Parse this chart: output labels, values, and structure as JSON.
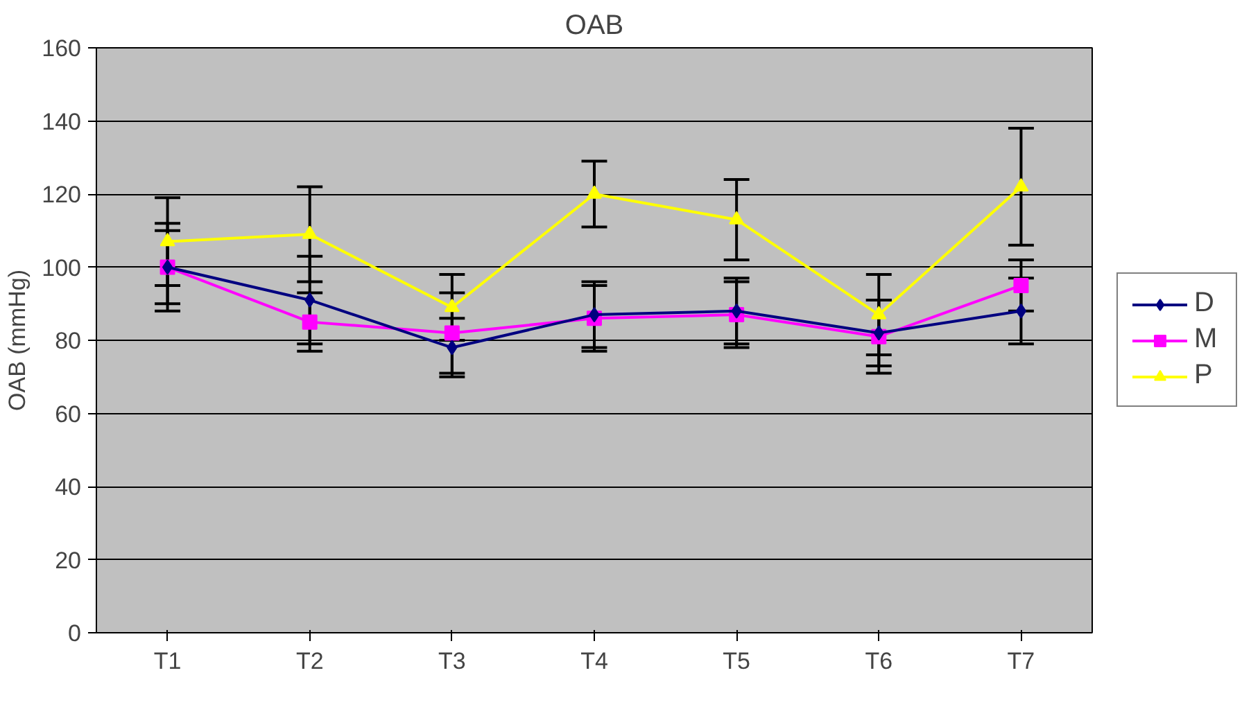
{
  "chart_data": {
    "type": "line",
    "title": "OAB",
    "ylabel": "OAB (mmHg)",
    "categories": [
      "T1",
      "T2",
      "T3",
      "T4",
      "T5",
      "T6",
      "T7"
    ],
    "ylim": [
      0,
      160
    ],
    "yticks": [
      0,
      20,
      40,
      60,
      80,
      100,
      120,
      140,
      160
    ],
    "grid": "y",
    "legend": "right",
    "series": [
      {
        "name": "D",
        "color": "#000080",
        "marker": "diamond",
        "values": [
          100,
          91,
          78,
          87,
          88,
          82,
          88
        ],
        "errors": [
          12,
          12,
          8,
          9,
          9,
          9,
          9
        ]
      },
      {
        "name": "M",
        "color": "#ff00ff",
        "marker": "square",
        "values": [
          100,
          85,
          82,
          86,
          87,
          81,
          95
        ],
        "errors": [
          10,
          8,
          11,
          9,
          9,
          10,
          7
        ]
      },
      {
        "name": "P",
        "color": "#ffff00",
        "marker": "triangle",
        "values": [
          107,
          109,
          89,
          120,
          113,
          87,
          122
        ],
        "errors": [
          12,
          13,
          9,
          9,
          11,
          11,
          16
        ]
      }
    ]
  }
}
